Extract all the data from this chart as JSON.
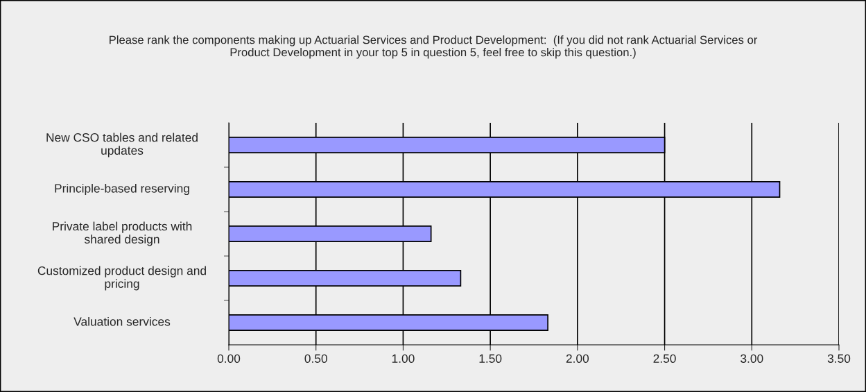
{
  "chart_data": {
    "type": "bar",
    "orientation": "horizontal",
    "title": "Please rank the components making up Actuarial Services and Product Development:  (If you did not rank Actuarial Services or Product Development in your top 5 in question 5, feel free to skip this question.)",
    "categories": [
      "New CSO tables and related updates",
      "Principle-based reserving",
      "Private label products with shared design",
      "Customized product design and pricing",
      "Valuation services"
    ],
    "values": [
      2.5,
      3.16,
      1.16,
      1.33,
      1.83
    ],
    "color": "#9999ff",
    "xlim": [
      0,
      3.5
    ],
    "xticks": [
      {
        "value": 0,
        "label": "0.00"
      },
      {
        "value": 0.5,
        "label": "0.50"
      },
      {
        "value": 1,
        "label": "1.00"
      },
      {
        "value": 1.5,
        "label": "1.50"
      },
      {
        "value": 2,
        "label": "2.00"
      },
      {
        "value": 2.5,
        "label": "2.50"
      },
      {
        "value": 3,
        "label": "3.00"
      },
      {
        "value": 3.5,
        "label": "3.50"
      }
    ],
    "grid": "x",
    "legend": false
  }
}
